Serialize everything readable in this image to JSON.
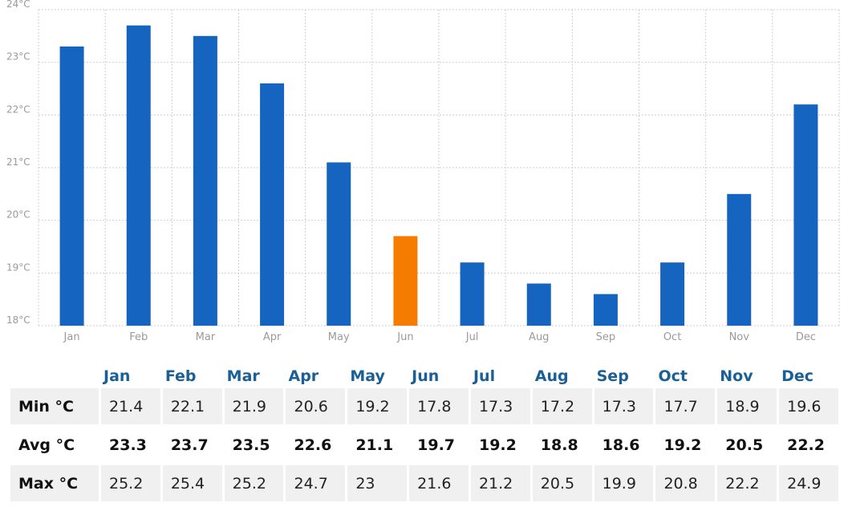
{
  "chart_data": {
    "type": "bar",
    "categories": [
      "Jan",
      "Feb",
      "Mar",
      "Apr",
      "May",
      "Jun",
      "Jul",
      "Aug",
      "Sep",
      "Oct",
      "Nov",
      "Dec"
    ],
    "values": [
      23.3,
      23.7,
      23.5,
      22.6,
      21.1,
      19.7,
      19.2,
      18.8,
      18.6,
      19.2,
      20.5,
      22.2
    ],
    "ylim": [
      18,
      24
    ],
    "yticks": [
      "18°C",
      "19°C",
      "20°C",
      "21°C",
      "22°C",
      "23°C",
      "24°C"
    ],
    "highlight_index": 5,
    "bar_color": "#1565c0",
    "highlight_color": "#f57c00",
    "grid": true
  },
  "table": {
    "months": [
      "Jan",
      "Feb",
      "Mar",
      "Apr",
      "May",
      "Jun",
      "Jul",
      "Aug",
      "Sep",
      "Oct",
      "Nov",
      "Dec"
    ],
    "rows": [
      {
        "label": "Min °C",
        "values": [
          "21.4",
          "22.1",
          "21.9",
          "20.6",
          "19.2",
          "17.8",
          "17.3",
          "17.2",
          "17.3",
          "17.7",
          "18.9",
          "19.6"
        ]
      },
      {
        "label": "Avg °C",
        "values": [
          "23.3",
          "23.7",
          "23.5",
          "22.6",
          "21.1",
          "19.7",
          "19.2",
          "18.8",
          "18.6",
          "19.2",
          "20.5",
          "22.2"
        ]
      },
      {
        "label": "Max °C",
        "values": [
          "25.2",
          "25.4",
          "25.2",
          "24.7",
          "23",
          "21.6",
          "21.2",
          "20.5",
          "19.9",
          "20.8",
          "22.2",
          "24.9"
        ]
      }
    ]
  }
}
